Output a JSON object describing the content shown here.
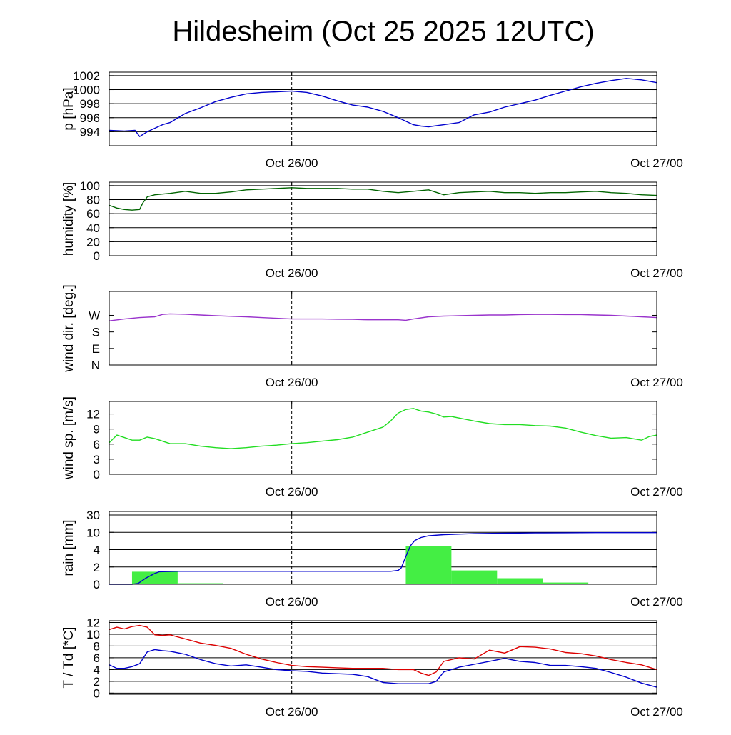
{
  "title": "Hildesheim (Oct 25 2025 12UTC)",
  "x_ticks": [
    {
      "label": "Oct 26/00",
      "hours": 12
    },
    {
      "label": "Oct 27/00",
      "hours": 36
    }
  ],
  "x_range_hours": [
    0,
    36
  ],
  "dashed_line_hours": 12,
  "chart_data": [
    {
      "type": "line",
      "ylabel": "p [hPa]",
      "ylim": [
        992,
        1002.5
      ],
      "yticks": [
        {
          "v": 994,
          "l": "994"
        },
        {
          "v": 996,
          "l": "996"
        },
        {
          "v": 998,
          "l": "998"
        },
        {
          "v": 1000,
          "l": "1000"
        },
        {
          "v": 1002,
          "l": "1002"
        }
      ],
      "grid": true,
      "series": [
        {
          "color": "#0000cc",
          "x": [
            0,
            1,
            1.7,
            2,
            2.5,
            3,
            3.5,
            4,
            5,
            6,
            7,
            8,
            9,
            10,
            11,
            12,
            13,
            14,
            15,
            16,
            17,
            18,
            19,
            20,
            20.5,
            21,
            22,
            23,
            24,
            25,
            26,
            27,
            28,
            29,
            30,
            31,
            32,
            33,
            34,
            35,
            36
          ],
          "y": [
            994.2,
            994.1,
            994.2,
            993.3,
            994,
            994.5,
            995,
            995.3,
            996.6,
            997.4,
            998.3,
            998.9,
            999.4,
            999.6,
            999.7,
            999.8,
            999.6,
            999.1,
            998.4,
            997.8,
            997.5,
            996.9,
            996,
            995,
            994.8,
            994.7,
            995,
            995.3,
            996.4,
            996.8,
            997.5,
            998,
            998.5,
            999.2,
            999.8,
            1000.4,
            1000.9,
            1001.3,
            1001.6,
            1001.4,
            1001
          ]
        }
      ]
    },
    {
      "type": "line",
      "ylabel": "humidity [%]",
      "ylim": [
        0,
        105
      ],
      "yticks": [
        {
          "v": 0,
          "l": "0"
        },
        {
          "v": 20,
          "l": "20"
        },
        {
          "v": 40,
          "l": "40"
        },
        {
          "v": 60,
          "l": "60"
        },
        {
          "v": 80,
          "l": "80"
        },
        {
          "v": 100,
          "l": "100"
        }
      ],
      "grid": true,
      "series": [
        {
          "color": "#006400",
          "x": [
            0,
            0.5,
            1,
            1.5,
            2,
            2.2,
            2.5,
            3,
            4,
            5,
            6,
            7,
            8,
            9,
            10,
            11,
            12,
            13,
            14,
            15,
            16,
            17,
            18,
            19,
            20,
            21,
            22,
            23,
            24,
            25,
            26,
            27,
            28,
            29,
            30,
            31,
            32,
            33,
            34,
            35,
            36
          ],
          "y": [
            72,
            68,
            66,
            65,
            66,
            75,
            84,
            87,
            89,
            92,
            89,
            89,
            91,
            94,
            95,
            96,
            97,
            96,
            96,
            96,
            95,
            95,
            92,
            90,
            92,
            94,
            87,
            90,
            91,
            92,
            90,
            90,
            89,
            90,
            90,
            91,
            92,
            90,
            89,
            87,
            86
          ]
        }
      ]
    },
    {
      "type": "line",
      "ylabel": "wind dir. [deg.]",
      "ylim": [
        0,
        400
      ],
      "yticks": [
        {
          "v": 0,
          "l": "N"
        },
        {
          "v": 90,
          "l": "E"
        },
        {
          "v": 180,
          "l": "S"
        },
        {
          "v": 270,
          "l": "W"
        }
      ],
      "grid": false,
      "series": [
        {
          "color": "#9933cc",
          "x": [
            0,
            1,
            2,
            3,
            3.5,
            4,
            5,
            6,
            7,
            8,
            9,
            10,
            11,
            12,
            13,
            14,
            15,
            16,
            17,
            18,
            19,
            19.5,
            20,
            21,
            22,
            23,
            24,
            25,
            26,
            27,
            28,
            29,
            30,
            31,
            32,
            33,
            34,
            35,
            36
          ],
          "y": [
            240,
            250,
            258,
            262,
            275,
            278,
            276,
            272,
            268,
            265,
            262,
            258,
            254,
            250,
            250,
            250,
            249,
            248,
            246,
            246,
            246,
            243,
            250,
            262,
            266,
            268,
            270,
            272,
            272,
            274,
            275,
            275,
            274,
            274,
            272,
            270,
            266,
            262,
            258
          ]
        }
      ]
    },
    {
      "type": "line",
      "ylabel": "wind sp. [m/s]",
      "ylim": [
        0,
        14.5
      ],
      "yticks": [
        {
          "v": 0,
          "l": "0"
        },
        {
          "v": 3,
          "l": "3"
        },
        {
          "v": 6,
          "l": "6"
        },
        {
          "v": 9,
          "l": "9"
        },
        {
          "v": 12,
          "l": "12"
        }
      ],
      "grid": false,
      "series": [
        {
          "color": "#22dd22",
          "x": [
            0,
            0.5,
            1,
            1.5,
            2,
            2.5,
            3,
            4,
            5,
            6,
            7,
            8,
            9,
            10,
            11,
            12,
            13,
            14,
            15,
            16,
            17,
            18,
            18.5,
            19,
            19.5,
            20,
            20.5,
            21,
            21.5,
            22,
            22.5,
            23,
            23.5,
            24,
            25,
            26,
            27,
            28,
            29,
            30,
            31,
            32,
            33,
            34,
            35,
            35.5,
            36
          ],
          "y": [
            6.3,
            7.8,
            7.3,
            6.8,
            6.8,
            7.4,
            7.1,
            6.1,
            6.1,
            5.6,
            5.3,
            5.1,
            5.3,
            5.6,
            5.8,
            6.1,
            6.3,
            6.6,
            6.9,
            7.4,
            8.4,
            9.4,
            10.6,
            12.2,
            12.9,
            13.1,
            12.6,
            12.4,
            12.0,
            11.4,
            11.5,
            11.2,
            10.9,
            10.6,
            10.1,
            9.9,
            9.9,
            9.7,
            9.6,
            9.2,
            8.4,
            7.7,
            7.2,
            7.3,
            6.8,
            7.5,
            7.8
          ]
        }
      ]
    },
    {
      "type": "bar+line",
      "ylabel": "rain [mm]",
      "ylim": [
        0,
        34
      ],
      "yticks": [
        {
          "v": 0,
          "l": "0"
        },
        {
          "v": 2,
          "l": "2"
        },
        {
          "v": 4,
          "l": "4"
        },
        {
          "v": 10,
          "l": "10"
        },
        {
          "v": 30,
          "l": "30"
        }
      ],
      "grid": true,
      "bars": {
        "color": "#44ee44",
        "width_hours": 3,
        "start_hours": [
          1.5,
          4.5,
          19.5,
          22.5,
          25.5,
          28.5,
          31.5
        ],
        "values": [
          1.45,
          0.12,
          5.2,
          1.6,
          0.7,
          0.2,
          0.08
        ]
      },
      "series": [
        {
          "color": "#0000cc",
          "x": [
            0,
            1.5,
            1.9,
            2.4,
            3,
            3.3,
            4.5,
            6,
            8,
            10,
            12,
            14,
            16,
            17,
            18,
            18.5,
            19,
            19.2,
            19.5,
            19.8,
            20.1,
            20.5,
            21,
            22,
            24,
            26,
            28,
            30,
            32,
            34,
            36
          ],
          "y": [
            0,
            0,
            0.1,
            0.7,
            1.25,
            1.45,
            1.5,
            1.5,
            1.5,
            1.5,
            1.5,
            1.5,
            1.5,
            1.5,
            1.5,
            1.5,
            1.6,
            1.9,
            3.2,
            5.3,
            7.2,
            8.2,
            8.8,
            9.2,
            9.55,
            9.7,
            9.8,
            9.85,
            9.9,
            9.9,
            9.9
          ]
        }
      ]
    },
    {
      "type": "line",
      "ylabel": "T / Td [*C]",
      "ylim": [
        -0.2,
        12.3
      ],
      "yticks": [
        {
          "v": 0,
          "l": "0"
        },
        {
          "v": 2,
          "l": "2"
        },
        {
          "v": 4,
          "l": "4"
        },
        {
          "v": 6,
          "l": "6"
        },
        {
          "v": 8,
          "l": "8"
        },
        {
          "v": 10,
          "l": "10"
        },
        {
          "v": 12,
          "l": "12"
        }
      ],
      "grid": true,
      "series": [
        {
          "color": "#dd0000",
          "x": [
            0,
            0.5,
            1,
            1.5,
            2,
            2.5,
            3,
            3.5,
            4,
            5,
            6,
            7,
            8,
            9,
            10,
            11,
            12,
            13,
            14,
            15,
            16,
            17,
            18,
            19,
            20,
            20.5,
            21,
            21.5,
            22,
            23,
            24,
            25,
            26,
            27,
            28,
            29,
            30,
            31,
            32,
            33,
            34,
            35,
            36
          ],
          "y": [
            10.8,
            11.2,
            10.9,
            11.3,
            11.5,
            11.2,
            9.9,
            9.8,
            9.9,
            9.2,
            8.5,
            8.1,
            7.6,
            6.6,
            5.8,
            5.2,
            4.7,
            4.5,
            4.4,
            4.3,
            4.2,
            4.2,
            4.2,
            4.0,
            4.0,
            3.4,
            3.0,
            3.6,
            5.4,
            6.0,
            5.8,
            7.3,
            6.8,
            7.9,
            7.8,
            7.5,
            6.9,
            6.7,
            6.3,
            5.7,
            5.2,
            4.8,
            4.0
          ]
        },
        {
          "color": "#0000cc",
          "x": [
            0,
            0.5,
            1,
            1.5,
            2,
            2.5,
            3,
            3.5,
            4,
            5,
            6,
            7,
            8,
            9,
            10,
            11,
            12,
            13,
            14,
            15,
            16,
            17,
            18,
            18.5,
            19,
            20,
            21,
            21.5,
            22,
            23,
            24,
            25,
            26,
            27,
            28,
            29,
            30,
            31,
            32,
            33,
            34,
            35,
            36
          ],
          "y": [
            4.8,
            4.2,
            4.2,
            4.5,
            5.0,
            7.0,
            7.4,
            7.2,
            7.1,
            6.6,
            5.7,
            5.0,
            4.6,
            4.8,
            4.4,
            4.0,
            3.8,
            3.7,
            3.4,
            3.3,
            3.2,
            2.8,
            1.8,
            1.7,
            1.6,
            1.6,
            1.6,
            2.0,
            3.6,
            4.4,
            4.9,
            5.4,
            5.9,
            5.4,
            5.2,
            4.7,
            4.7,
            4.5,
            4.2,
            3.5,
            2.7,
            1.7,
            1.0
          ]
        }
      ]
    }
  ]
}
